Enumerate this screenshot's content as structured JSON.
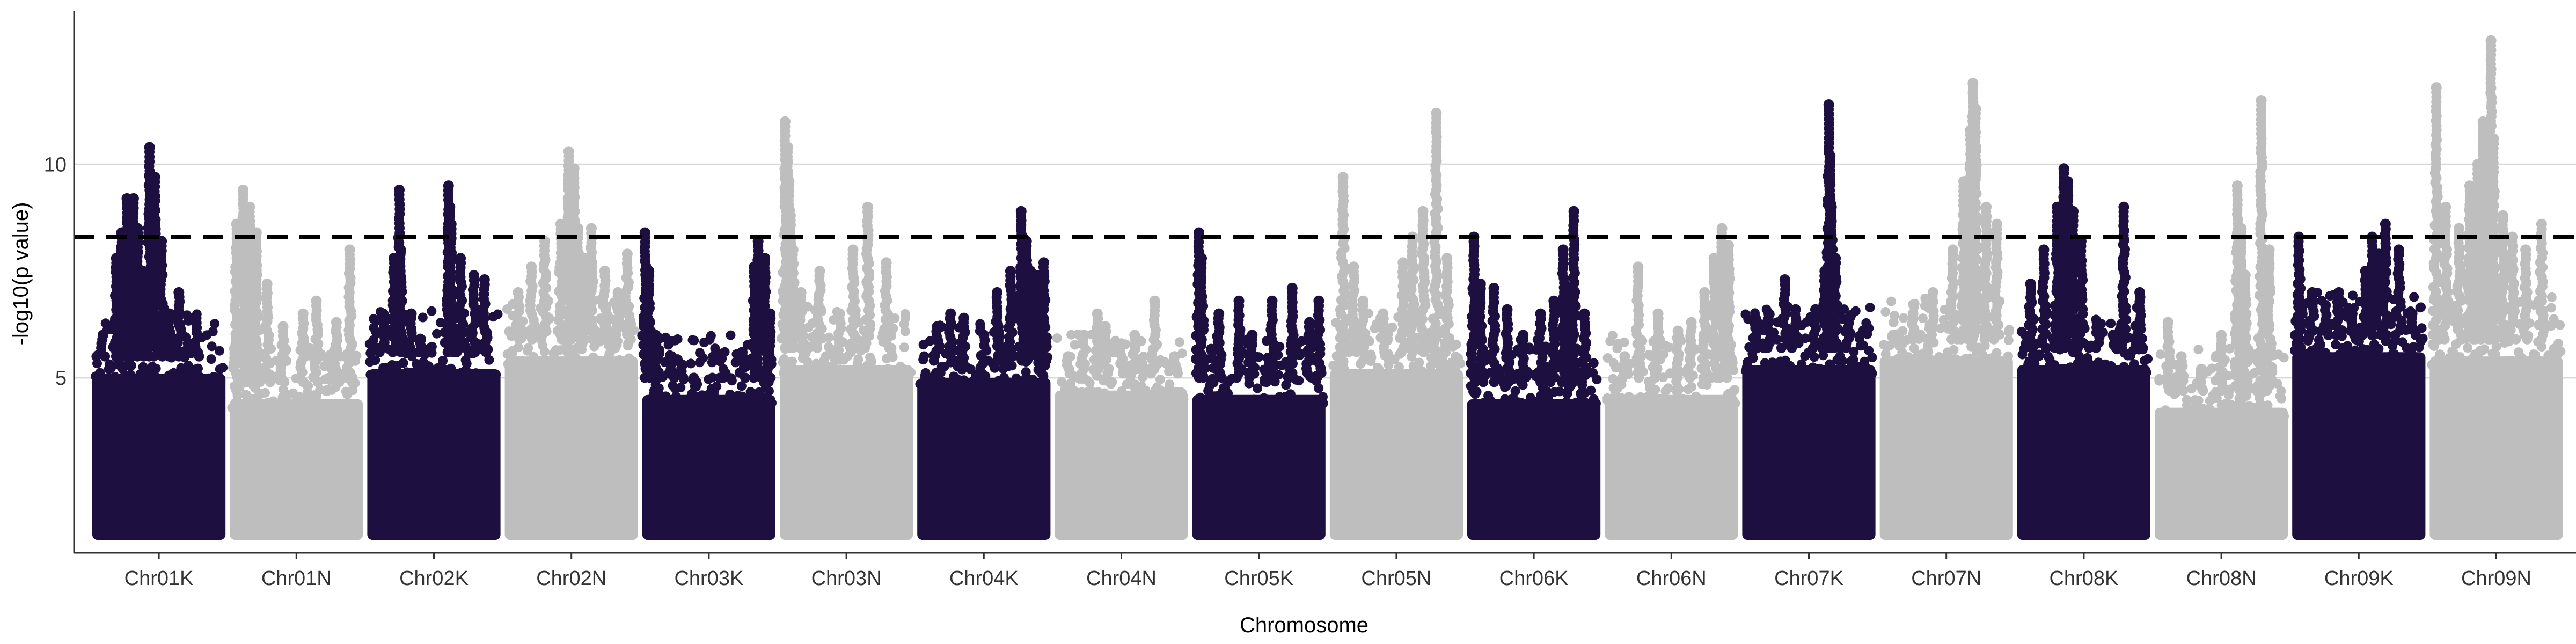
{
  "chart_data": {
    "type": "scatter",
    "subtype": "manhattan",
    "xlabel": "Chromosome",
    "ylabel": "-log10(p value)",
    "ylim": [
      0.9,
      13.6
    ],
    "y_ticks": [
      5,
      10
    ],
    "grid": "horizontal-major",
    "legend": "none",
    "colors": {
      "odd": "#1d1040",
      "even": "#bebebe",
      "threshold": "#000000",
      "grid": "#d9d9d9",
      "axis": "#333333"
    },
    "threshold": {
      "value": 8.3,
      "style": "dashed"
    },
    "categories": [
      "Chr01K",
      "Chr01N",
      "Chr02K",
      "Chr02N",
      "Chr03K",
      "Chr03N",
      "Chr04K",
      "Chr04N",
      "Chr05K",
      "Chr05N",
      "Chr06K",
      "Chr06N",
      "Chr07K",
      "Chr07N",
      "Chr08K",
      "Chr08N",
      "Chr09K",
      "Chr09N"
    ],
    "category_colors": [
      "odd",
      "even",
      "odd",
      "even",
      "odd",
      "even",
      "odd",
      "even",
      "odd",
      "even",
      "odd",
      "even",
      "odd",
      "even",
      "odd",
      "even",
      "odd",
      "even"
    ],
    "series_profile": [
      {
        "chromosome": "Chr01K",
        "base_max": 5.5,
        "x": [
          0.08,
          0.18,
          0.22,
          0.26,
          0.28,
          0.31,
          0.34,
          0.38,
          0.43,
          0.47,
          0.52,
          0.58,
          0.65,
          0.72,
          0.78
        ],
        "y": [
          6.0,
          7.8,
          8.4,
          9.2,
          8.8,
          9.2,
          8.5,
          7.5,
          10.4,
          9.7,
          8.2,
          6.5,
          7.0,
          5.8,
          6.4
        ]
      },
      {
        "chromosome": "Chr01N",
        "base_max": 4.9,
        "x": [
          0.05,
          0.1,
          0.15,
          0.2,
          0.28,
          0.4,
          0.55,
          0.65,
          0.8,
          0.9
        ],
        "y": [
          8.6,
          9.4,
          9.0,
          8.4,
          7.2,
          6.2,
          6.5,
          6.8,
          6.3,
          8.0
        ]
      },
      {
        "chromosome": "Chr02K",
        "base_max": 5.6,
        "x": [
          0.12,
          0.2,
          0.24,
          0.25,
          0.33,
          0.4,
          0.61,
          0.62,
          0.63,
          0.7,
          0.8,
          0.88
        ],
        "y": [
          6.5,
          7.8,
          9.4,
          8.0,
          6.5,
          5.9,
          9.5,
          9.0,
          8.6,
          7.8,
          7.4,
          7.3
        ]
      },
      {
        "chromosome": "Chr02N",
        "base_max": 5.9,
        "x": [
          0.1,
          0.2,
          0.3,
          0.42,
          0.48,
          0.52,
          0.55,
          0.6,
          0.65,
          0.75,
          0.85,
          0.92
        ],
        "y": [
          7.0,
          7.6,
          8.2,
          8.6,
          10.3,
          9.9,
          8.5,
          7.8,
          8.5,
          7.5,
          7.0,
          7.9
        ]
      },
      {
        "chromosome": "Chr03K",
        "base_max": 5.0,
        "x": [
          0.02,
          0.05,
          0.1,
          0.22,
          0.3,
          0.4,
          0.6,
          0.75,
          0.84,
          0.87,
          0.92,
          0.96
        ],
        "y": [
          8.4,
          7.5,
          6.0,
          5.5,
          5.3,
          4.8,
          5.0,
          5.6,
          7.6,
          8.2,
          7.8,
          6.5
        ]
      },
      {
        "chromosome": "Chr03N",
        "base_max": 5.7,
        "x": [
          0.04,
          0.06,
          0.07,
          0.08,
          0.1,
          0.16,
          0.3,
          0.45,
          0.55,
          0.66,
          0.8
        ],
        "y": [
          11.0,
          10.4,
          9.6,
          8.8,
          8.0,
          7.0,
          7.5,
          6.5,
          8.0,
          9.0,
          7.7
        ]
      },
      {
        "chromosome": "Chr04K",
        "base_max": 5.4,
        "x": [
          0.15,
          0.25,
          0.35,
          0.5,
          0.6,
          0.7,
          0.78,
          0.82,
          0.85,
          0.9,
          0.95
        ],
        "y": [
          6.2,
          6.5,
          6.4,
          6.0,
          7.0,
          7.5,
          8.9,
          8.2,
          7.5,
          7.4,
          7.7
        ]
      },
      {
        "chromosome": "Chr04N",
        "base_max": 5.1,
        "x": [
          0.1,
          0.22,
          0.32,
          0.38,
          0.5,
          0.6,
          0.75,
          0.9
        ],
        "y": [
          5.5,
          6.0,
          6.5,
          6.2,
          5.8,
          6.0,
          6.8,
          5.5
        ]
      },
      {
        "chromosome": "Chr05K",
        "base_max": 5.0,
        "x": [
          0.05,
          0.07,
          0.2,
          0.35,
          0.45,
          0.6,
          0.75,
          0.88,
          0.95
        ],
        "y": [
          8.4,
          7.8,
          6.5,
          6.8,
          6.0,
          6.8,
          7.1,
          6.3,
          6.8
        ]
      },
      {
        "chromosome": "Chr05N",
        "base_max": 5.6,
        "x": [
          0.1,
          0.18,
          0.25,
          0.4,
          0.55,
          0.62,
          0.7,
          0.8,
          0.88
        ],
        "y": [
          9.7,
          7.6,
          6.8,
          6.5,
          7.7,
          8.3,
          8.9,
          11.2,
          7.8
        ]
      },
      {
        "chromosome": "Chr06K",
        "base_max": 4.9,
        "x": [
          0.05,
          0.1,
          0.2,
          0.3,
          0.42,
          0.55,
          0.65,
          0.72,
          0.76,
          0.8,
          0.88
        ],
        "y": [
          8.3,
          7.2,
          7.1,
          6.6,
          6.0,
          6.5,
          6.8,
          8.0,
          7.0,
          8.9,
          6.5
        ]
      },
      {
        "chromosome": "Chr06N",
        "base_max": 5.0,
        "x": [
          0.15,
          0.25,
          0.4,
          0.55,
          0.65,
          0.75,
          0.82,
          0.88,
          0.93
        ],
        "y": [
          5.5,
          7.6,
          6.5,
          6.1,
          6.3,
          7.0,
          7.8,
          8.5,
          8.1
        ]
      },
      {
        "chromosome": "Chr07K",
        "base_max": 5.7,
        "x": [
          0.1,
          0.2,
          0.32,
          0.4,
          0.55,
          0.62,
          0.65,
          0.66,
          0.67,
          0.7,
          0.8
        ],
        "y": [
          6.4,
          6.5,
          7.3,
          6.6,
          6.6,
          7.5,
          11.4,
          10.2,
          9.0,
          7.8,
          6.4
        ]
      },
      {
        "chromosome": "Chr07N",
        "base_max": 5.9,
        "x": [
          0.1,
          0.25,
          0.4,
          0.55,
          0.63,
          0.68,
          0.7,
          0.72,
          0.8,
          0.88
        ],
        "y": [
          6.0,
          6.5,
          7.0,
          8.0,
          9.6,
          10.8,
          11.9,
          11.3,
          9.0,
          8.6
        ]
      },
      {
        "chromosome": "Chr08K",
        "base_max": 5.7,
        "x": [
          0.1,
          0.2,
          0.3,
          0.35,
          0.38,
          0.42,
          0.48,
          0.6,
          0.72,
          0.8,
          0.92
        ],
        "y": [
          7.2,
          8.0,
          9.0,
          9.9,
          9.6,
          8.9,
          8.2,
          6.3,
          6.0,
          9.0,
          7.0
        ]
      },
      {
        "chromosome": "Chr08N",
        "base_max": 4.7,
        "x": [
          0.1,
          0.2,
          0.35,
          0.5,
          0.62,
          0.65,
          0.68,
          0.8,
          0.86
        ],
        "y": [
          6.3,
          5.5,
          5.2,
          6.0,
          9.5,
          8.5,
          7.4,
          11.5,
          8.0
        ]
      },
      {
        "chromosome": "Chr09K",
        "base_max": 6.0,
        "x": [
          0.05,
          0.15,
          0.25,
          0.35,
          0.45,
          0.55,
          0.6,
          0.65,
          0.7,
          0.8,
          0.9
        ],
        "y": [
          8.3,
          7.0,
          6.7,
          7.0,
          6.5,
          7.5,
          8.3,
          7.9,
          8.6,
          8.0,
          6.5
        ]
      },
      {
        "chromosome": "Chr09N",
        "base_max": 5.9,
        "x": [
          0.05,
          0.12,
          0.22,
          0.3,
          0.36,
          0.4,
          0.44,
          0.46,
          0.48,
          0.55,
          0.62,
          0.72,
          0.84
        ],
        "y": [
          11.8,
          9.0,
          8.5,
          9.5,
          10.0,
          11.0,
          10.9,
          12.9,
          10.6,
          8.8,
          8.3,
          8.0,
          8.6
        ]
      }
    ]
  }
}
